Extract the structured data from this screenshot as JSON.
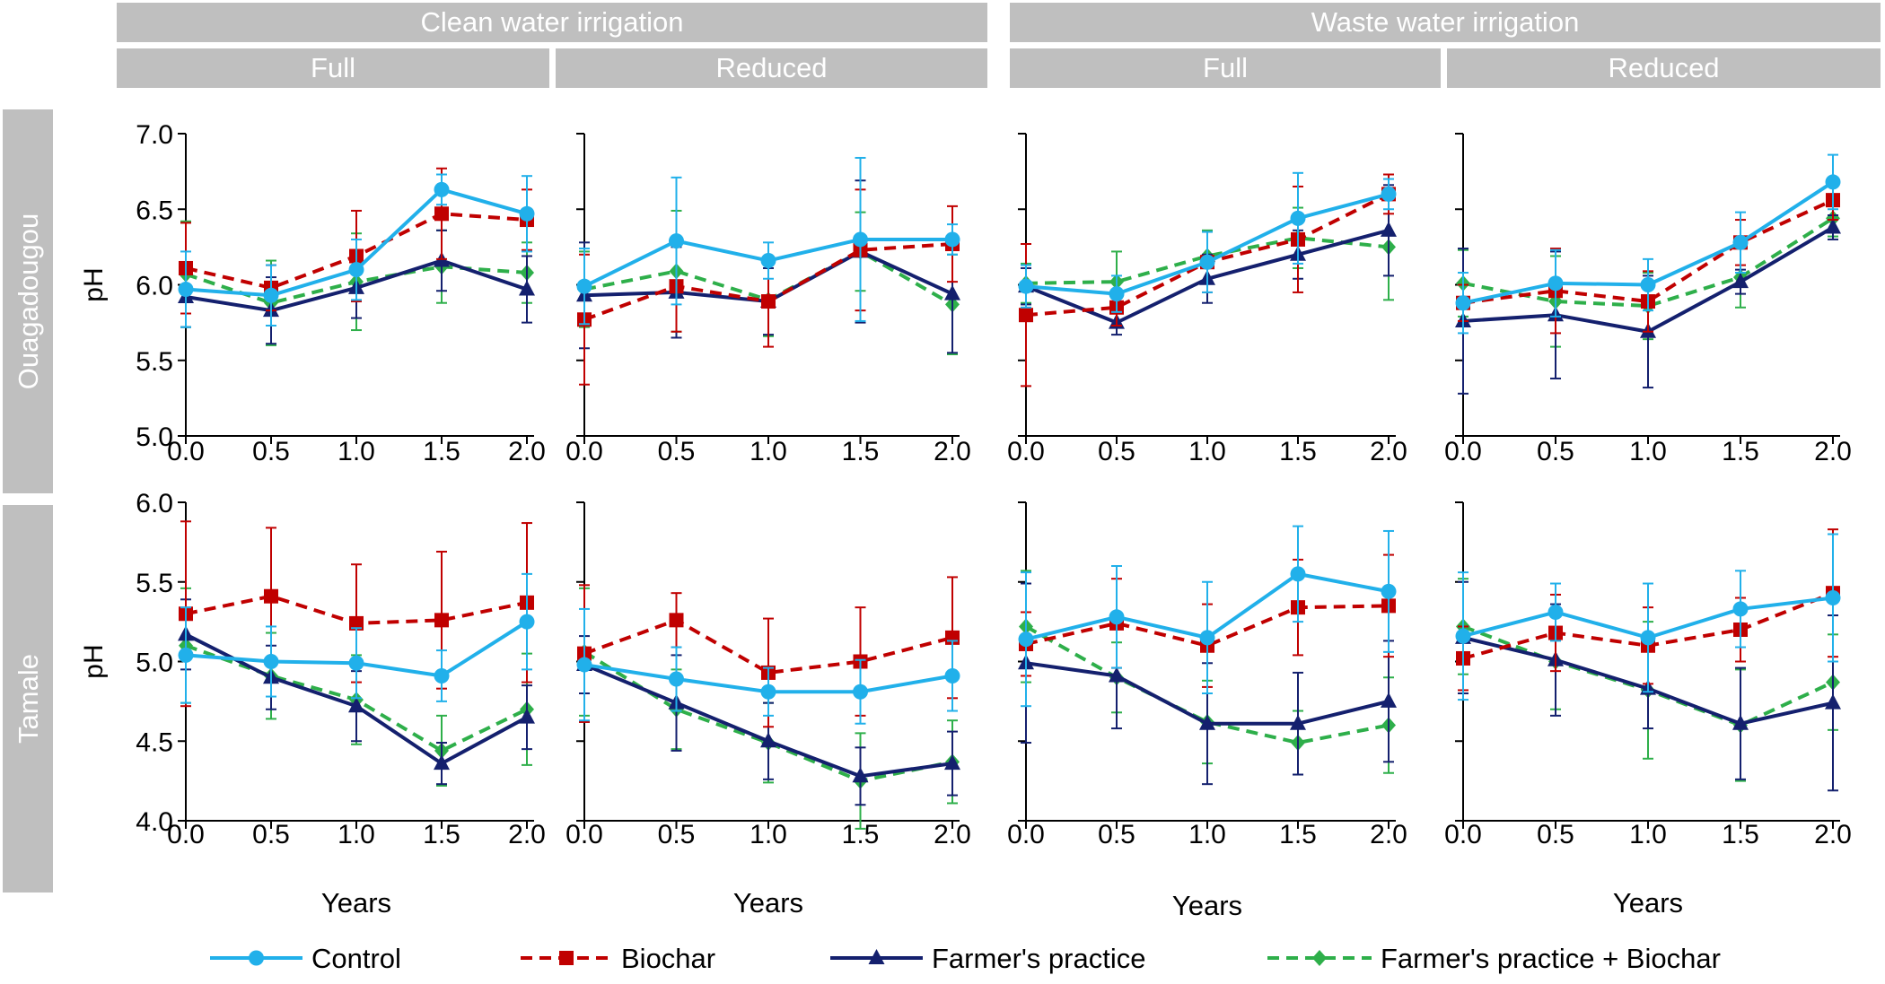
{
  "colors": {
    "control": "#21b0ea",
    "biochar": "#c00000",
    "farmers_practice": "#14206e",
    "farmers_practice_biochar": "#2eaf4a",
    "strip_fill": "#bfbfbf",
    "strip_text": "#ffffff",
    "axis": "#000000"
  },
  "strips": {
    "groups": [
      "Clean water irrigation",
      "Waste water irrigation"
    ],
    "columns": [
      "Full",
      "Reduced",
      "Full",
      "Reduced"
    ],
    "rows": [
      "Ouagadougou",
      "Tamale"
    ]
  },
  "axes": {
    "ylabel": "pH",
    "xlabel": "Years",
    "x_ticks": [
      "0.0",
      "0.5",
      "1.0",
      "1.5",
      "2.0"
    ],
    "row_ticks": [
      [
        "7.0",
        "6.5",
        "6.0",
        "5.5",
        "5.0"
      ],
      [
        "6.0",
        "5.5",
        "5.0",
        "4.5",
        "4.0"
      ]
    ]
  },
  "legend": [
    {
      "key": "control",
      "label": "Control",
      "icon": "circle-marker"
    },
    {
      "key": "biochar",
      "label": "Biochar",
      "icon": "square-marker"
    },
    {
      "key": "farmers_practice",
      "label": "Farmer's practice",
      "icon": "triangle-marker"
    },
    {
      "key": "farmers_practice_biochar",
      "label": "Farmer's practice + Biochar",
      "icon": "diamond-marker"
    }
  ],
  "chart_data": [
    {
      "type": "line",
      "location": "Ouagadougou",
      "irrigation": "Clean water irrigation",
      "amount": "Full",
      "x": [
        0.0,
        0.5,
        1.0,
        1.5,
        2.0
      ],
      "ylim": [
        5.0,
        7.0
      ],
      "xlabel": "",
      "ylabel": "pH",
      "series": [
        {
          "name": "Control",
          "key": "control",
          "values": [
            5.97,
            5.93,
            6.1,
            6.63,
            6.47
          ],
          "errors": [
            0.25,
            0.2,
            0.2,
            0.1,
            0.25
          ]
        },
        {
          "name": "Biochar",
          "key": "biochar",
          "values": [
            6.11,
            5.98,
            6.19,
            6.47,
            6.43
          ],
          "errors": [
            0.3,
            0.15,
            0.3,
            0.3,
            0.2
          ]
        },
        {
          "name": "Farmer's practice",
          "key": "farmers_practice",
          "values": [
            5.92,
            5.83,
            5.98,
            6.16,
            5.97
          ],
          "errors": [
            0.2,
            0.22,
            0.2,
            0.2,
            0.22
          ]
        },
        {
          "name": "Farmer's practice + Biochar",
          "key": "farmers_practice_biochar",
          "values": [
            6.07,
            5.88,
            6.02,
            6.12,
            6.08
          ],
          "errors": [
            0.35,
            0.28,
            0.32,
            0.24,
            0.2
          ]
        }
      ]
    },
    {
      "type": "line",
      "location": "Ouagadougou",
      "irrigation": "Clean water irrigation",
      "amount": "Reduced",
      "x": [
        0.0,
        0.5,
        1.0,
        1.5,
        2.0
      ],
      "ylim": [
        5.0,
        7.0
      ],
      "xlabel": "",
      "ylabel": "pH",
      "series": [
        {
          "name": "Control",
          "key": "control",
          "values": [
            5.99,
            6.29,
            6.16,
            6.3,
            6.3
          ],
          "errors": [
            0.25,
            0.42,
            0.12,
            0.54,
            0.1
          ]
        },
        {
          "name": "Biochar",
          "key": "biochar",
          "values": [
            5.77,
            5.99,
            5.89,
            6.23,
            6.27
          ],
          "errors": [
            0.43,
            0.3,
            0.3,
            0.4,
            0.25
          ]
        },
        {
          "name": "Farmer's practice",
          "key": "farmers_practice",
          "values": [
            5.93,
            5.95,
            5.89,
            6.22,
            5.94
          ],
          "errors": [
            0.35,
            0.3,
            0.22,
            0.47,
            0.39
          ]
        },
        {
          "name": "Farmer's practice + Biochar",
          "key": "farmers_practice_biochar",
          "values": [
            5.97,
            6.09,
            5.9,
            6.22,
            5.87
          ],
          "errors": [
            0.25,
            0.4,
            0.24,
            0.26,
            0.33
          ]
        }
      ]
    },
    {
      "type": "line",
      "location": "Ouagadougou",
      "irrigation": "Waste water irrigation",
      "amount": "Full",
      "x": [
        0.0,
        0.5,
        1.0,
        1.5,
        2.0
      ],
      "ylim": [
        5.0,
        7.0
      ],
      "xlabel": "",
      "ylabel": "pH",
      "series": [
        {
          "name": "Control",
          "key": "control",
          "values": [
            5.99,
            5.94,
            6.15,
            6.44,
            6.6
          ],
          "errors": [
            0.14,
            0.12,
            0.2,
            0.3,
            0.1
          ]
        },
        {
          "name": "Biochar",
          "key": "biochar",
          "values": [
            5.8,
            5.85,
            6.15,
            6.3,
            6.6
          ],
          "errors": [
            0.47,
            0.12,
            0.2,
            0.35,
            0.13
          ]
        },
        {
          "name": "Farmer's practice",
          "key": "farmers_practice",
          "values": [
            5.99,
            5.75,
            6.04,
            6.2,
            6.36
          ],
          "errors": [
            0.12,
            0.08,
            0.16,
            0.16,
            0.3
          ]
        },
        {
          "name": "Farmer's practice + Biochar",
          "key": "farmers_practice_biochar",
          "values": [
            6.01,
            6.02,
            6.19,
            6.31,
            6.25
          ],
          "errors": [
            0.13,
            0.2,
            0.17,
            0.2,
            0.35
          ]
        }
      ]
    },
    {
      "type": "line",
      "location": "Ouagadougou",
      "irrigation": "Waste water irrigation",
      "amount": "Reduced",
      "x": [
        0.0,
        0.5,
        1.0,
        1.5,
        2.0
      ],
      "ylim": [
        5.0,
        7.0
      ],
      "xlabel": "",
      "ylabel": "pH",
      "series": [
        {
          "name": "Control",
          "key": "control",
          "values": [
            5.88,
            6.01,
            6.0,
            6.28,
            6.68
          ],
          "errors": [
            0.2,
            0.22,
            0.17,
            0.2,
            0.18
          ]
        },
        {
          "name": "Biochar",
          "key": "biochar",
          "values": [
            5.88,
            5.96,
            5.89,
            6.28,
            6.56
          ],
          "errors": [
            0.12,
            0.28,
            0.2,
            0.15,
            0.13
          ]
        },
        {
          "name": "Farmer's practice",
          "key": "farmers_practice",
          "values": [
            5.76,
            5.8,
            5.69,
            6.02,
            6.38
          ],
          "errors": [
            0.48,
            0.42,
            0.37,
            0.08,
            0.08
          ]
        },
        {
          "name": "Farmer's practice + Biochar",
          "key": "farmers_practice_biochar",
          "values": [
            6.01,
            5.89,
            5.86,
            6.05,
            6.44
          ],
          "errors": [
            0.22,
            0.3,
            0.22,
            0.2,
            0.12
          ]
        }
      ]
    },
    {
      "type": "line",
      "location": "Tamale",
      "irrigation": "Clean water irrigation",
      "amount": "Full",
      "x": [
        0.0,
        0.5,
        1.0,
        1.5,
        2.0
      ],
      "ylim": [
        4.0,
        6.0
      ],
      "xlabel": "Years",
      "ylabel": "pH",
      "series": [
        {
          "name": "Control",
          "key": "control",
          "values": [
            5.04,
            5.0,
            4.99,
            4.91,
            5.25
          ],
          "errors": [
            0.3,
            0.22,
            0.22,
            0.16,
            0.3
          ]
        },
        {
          "name": "Biochar",
          "key": "biochar",
          "values": [
            5.3,
            5.41,
            5.24,
            5.26,
            5.37
          ],
          "errors": [
            0.58,
            0.43,
            0.37,
            0.43,
            0.5
          ]
        },
        {
          "name": "Farmer's practice",
          "key": "farmers_practice",
          "values": [
            5.17,
            4.9,
            4.72,
            4.36,
            4.65
          ],
          "errors": [
            0.22,
            0.2,
            0.22,
            0.13,
            0.2
          ]
        },
        {
          "name": "Farmer's practice + Biochar",
          "key": "farmers_practice_biochar",
          "values": [
            5.1,
            4.91,
            4.76,
            4.44,
            4.7
          ],
          "errors": [
            0.36,
            0.27,
            0.28,
            0.22,
            0.35
          ]
        }
      ]
    },
    {
      "type": "line",
      "location": "Tamale",
      "irrigation": "Clean water irrigation",
      "amount": "Reduced",
      "x": [
        0.0,
        0.5,
        1.0,
        1.5,
        2.0
      ],
      "ylim": [
        4.0,
        6.0
      ],
      "xlabel": "Years",
      "ylabel": "pH",
      "series": [
        {
          "name": "Control",
          "key": "control",
          "values": [
            4.98,
            4.89,
            4.81,
            4.81,
            4.91
          ],
          "errors": [
            0.35,
            0.2,
            0.15,
            0.2,
            0.22
          ]
        },
        {
          "name": "Biochar",
          "key": "biochar",
          "values": [
            5.05,
            5.26,
            4.93,
            5.0,
            5.15
          ],
          "errors": [
            0.43,
            0.17,
            0.34,
            0.34,
            0.38
          ]
        },
        {
          "name": "Farmer's practice",
          "key": "farmers_practice",
          "values": [
            4.98,
            4.74,
            4.5,
            4.28,
            4.36
          ],
          "errors": [
            0.18,
            0.3,
            0.24,
            0.18,
            0.2
          ]
        },
        {
          "name": "Farmer's practice + Biochar",
          "key": "farmers_practice_biochar",
          "values": [
            5.06,
            4.7,
            4.49,
            4.25,
            4.37
          ],
          "errors": [
            0.4,
            0.25,
            0.25,
            0.3,
            0.26
          ]
        }
      ]
    },
    {
      "type": "line",
      "location": "Tamale",
      "irrigation": "Waste water irrigation",
      "amount": "Full",
      "x": [
        0.0,
        0.5,
        1.0,
        1.5,
        2.0
      ],
      "ylim": [
        4.0,
        6.0
      ],
      "xlabel": "Years",
      "ylabel": "pH",
      "series": [
        {
          "name": "Control",
          "key": "control",
          "values": [
            5.14,
            5.28,
            5.15,
            5.55,
            5.44
          ],
          "errors": [
            0.42,
            0.32,
            0.35,
            0.3,
            0.38
          ]
        },
        {
          "name": "Biochar",
          "key": "biochar",
          "values": [
            5.11,
            5.24,
            5.1,
            5.34,
            5.35
          ],
          "errors": [
            0.2,
            0.28,
            0.26,
            0.3,
            0.32
          ]
        },
        {
          "name": "Farmer's practice",
          "key": "farmers_practice",
          "values": [
            4.99,
            4.91,
            4.61,
            4.61,
            4.75
          ],
          "errors": [
            0.5,
            0.33,
            0.38,
            0.32,
            0.38
          ]
        },
        {
          "name": "Farmer's practice + Biochar",
          "key": "farmers_practice_biochar",
          "values": [
            5.22,
            4.9,
            4.62,
            4.49,
            4.6
          ],
          "errors": [
            0.35,
            0.22,
            0.26,
            0.2,
            0.3
          ]
        }
      ]
    },
    {
      "type": "line",
      "location": "Tamale",
      "irrigation": "Waste water irrigation",
      "amount": "Reduced",
      "x": [
        0.0,
        0.5,
        1.0,
        1.5,
        2.0
      ],
      "ylim": [
        4.0,
        6.0
      ],
      "xlabel": "Years",
      "ylabel": "pH",
      "series": [
        {
          "name": "Control",
          "key": "control",
          "values": [
            5.16,
            5.31,
            5.15,
            5.33,
            5.4
          ],
          "errors": [
            0.4,
            0.18,
            0.34,
            0.24,
            0.4
          ]
        },
        {
          "name": "Biochar",
          "key": "biochar",
          "values": [
            5.02,
            5.18,
            5.1,
            5.2,
            5.43
          ],
          "errors": [
            0.2,
            0.24,
            0.24,
            0.2,
            0.4
          ]
        },
        {
          "name": "Farmer's practice",
          "key": "farmers_practice",
          "values": [
            5.15,
            5.01,
            4.83,
            4.61,
            4.74
          ],
          "errors": [
            0.35,
            0.35,
            0.25,
            0.35,
            0.55
          ]
        },
        {
          "name": "Farmer's practice + Biochar",
          "key": "farmers_practice_biochar",
          "values": [
            5.22,
            5.0,
            4.82,
            4.6,
            4.87
          ],
          "errors": [
            0.3,
            0.3,
            0.43,
            0.35,
            0.3
          ]
        }
      ]
    }
  ]
}
